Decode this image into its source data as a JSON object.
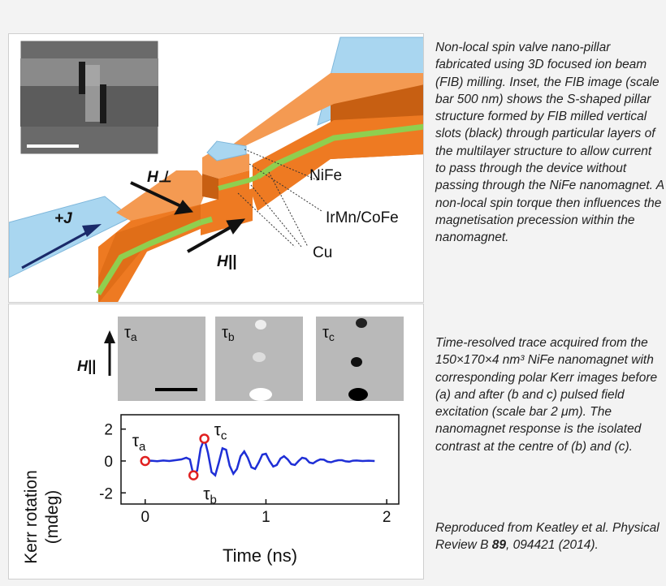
{
  "figure": {
    "labels": {
      "nife": "NiFe",
      "irmn_cofe": "IrMn/CoFe",
      "cu": "Cu",
      "current": "+J",
      "h_perp": "H⊥",
      "h_par": "H||",
      "h_par_small": "H||"
    },
    "kerr_images": [
      {
        "label": "τa",
        "sym": "τ",
        "sub": "a"
      },
      {
        "label": "τb",
        "sym": "τ",
        "sub": "b"
      },
      {
        "label": "τc",
        "sym": "τ",
        "sub": "c"
      }
    ],
    "colors": {
      "substrate": "#f07d2a",
      "cu": "#8fcf4f",
      "contact": "#a9d6f0",
      "trace": "#1f2fd6",
      "marker": "#e02020"
    }
  },
  "caption": {
    "para1": "Non-local spin valve nano-pillar fabricated using 3D focused ion beam (FIB) milling. Inset, the FIB image (scale bar 500 nm) shows the S-shaped pillar structure formed by FIB milled vertical slots (black) through particular layers of the multilayer structure  to allow current to pass  through the device without passing through the NiFe nanomagnet. A non-local spin torque then influences the magnetisation precession within the nanomagnet.",
    "para2": "Time-resolved trace acquired from the 150×170×4 nm³ NiFe nanomagnet with corresponding polar Kerr images before (a) and after (b and c) pulsed field excitation (scale bar 2 μm). The nanomagnet response is the isolated contrast at the centre of (b) and (c).",
    "para3_prefix": "Reproduced from Keatley et al. Physical Review B ",
    "para3_bold": "89",
    "para3_suffix": ", 094421 (2014)."
  },
  "chart_data": {
    "type": "line",
    "xlabel": "Time (ns)",
    "ylabel": "Kerr rotation (mdeg)",
    "xlim": [
      -0.2,
      2.1
    ],
    "ylim": [
      -2.7,
      2.9
    ],
    "xticks": [
      "0",
      "1",
      "2"
    ],
    "yticks": [
      "2",
      "0",
      "-2"
    ],
    "series": [
      {
        "x": [
          0,
          0.05,
          0.1,
          0.15,
          0.2,
          0.25,
          0.3,
          0.34,
          0.37,
          0.4,
          0.43,
          0.46,
          0.49,
          0.52,
          0.55,
          0.58,
          0.61,
          0.64,
          0.67,
          0.7,
          0.73,
          0.76,
          0.79,
          0.82,
          0.85,
          0.88,
          0.91,
          0.94,
          0.97,
          1.0,
          1.03,
          1.06,
          1.09,
          1.12,
          1.15,
          1.18,
          1.21,
          1.24,
          1.27,
          1.3,
          1.33,
          1.36,
          1.39,
          1.42,
          1.45,
          1.48,
          1.51,
          1.54,
          1.57,
          1.6,
          1.63,
          1.66,
          1.69,
          1.72,
          1.75,
          1.8,
          1.85,
          1.9
        ],
        "y": [
          0,
          0.02,
          -0.01,
          0.03,
          0.0,
          0.05,
          0.1,
          0.2,
          0.1,
          -0.9,
          -0.6,
          0.8,
          1.4,
          0.5,
          -0.7,
          -0.9,
          -0.1,
          0.8,
          0.7,
          -0.3,
          -0.8,
          -0.5,
          0.3,
          0.6,
          0.2,
          -0.4,
          -0.5,
          -0.1,
          0.4,
          0.45,
          0.0,
          -0.35,
          -0.25,
          0.15,
          0.3,
          0.1,
          -0.2,
          -0.25,
          0.0,
          0.2,
          0.15,
          -0.1,
          -0.15,
          0.0,
          0.1,
          0.08,
          -0.05,
          -0.08,
          0.0,
          0.05,
          0.05,
          -0.02,
          -0.04,
          0.02,
          0.03,
          0.0,
          0.02,
          0.0
        ]
      }
    ],
    "markers": [
      {
        "label": "τa",
        "x": 0.0,
        "y": 0.0
      },
      {
        "label": "τb",
        "x": 0.4,
        "y": -0.9
      },
      {
        "label": "τc",
        "x": 0.49,
        "y": 1.4
      }
    ]
  }
}
